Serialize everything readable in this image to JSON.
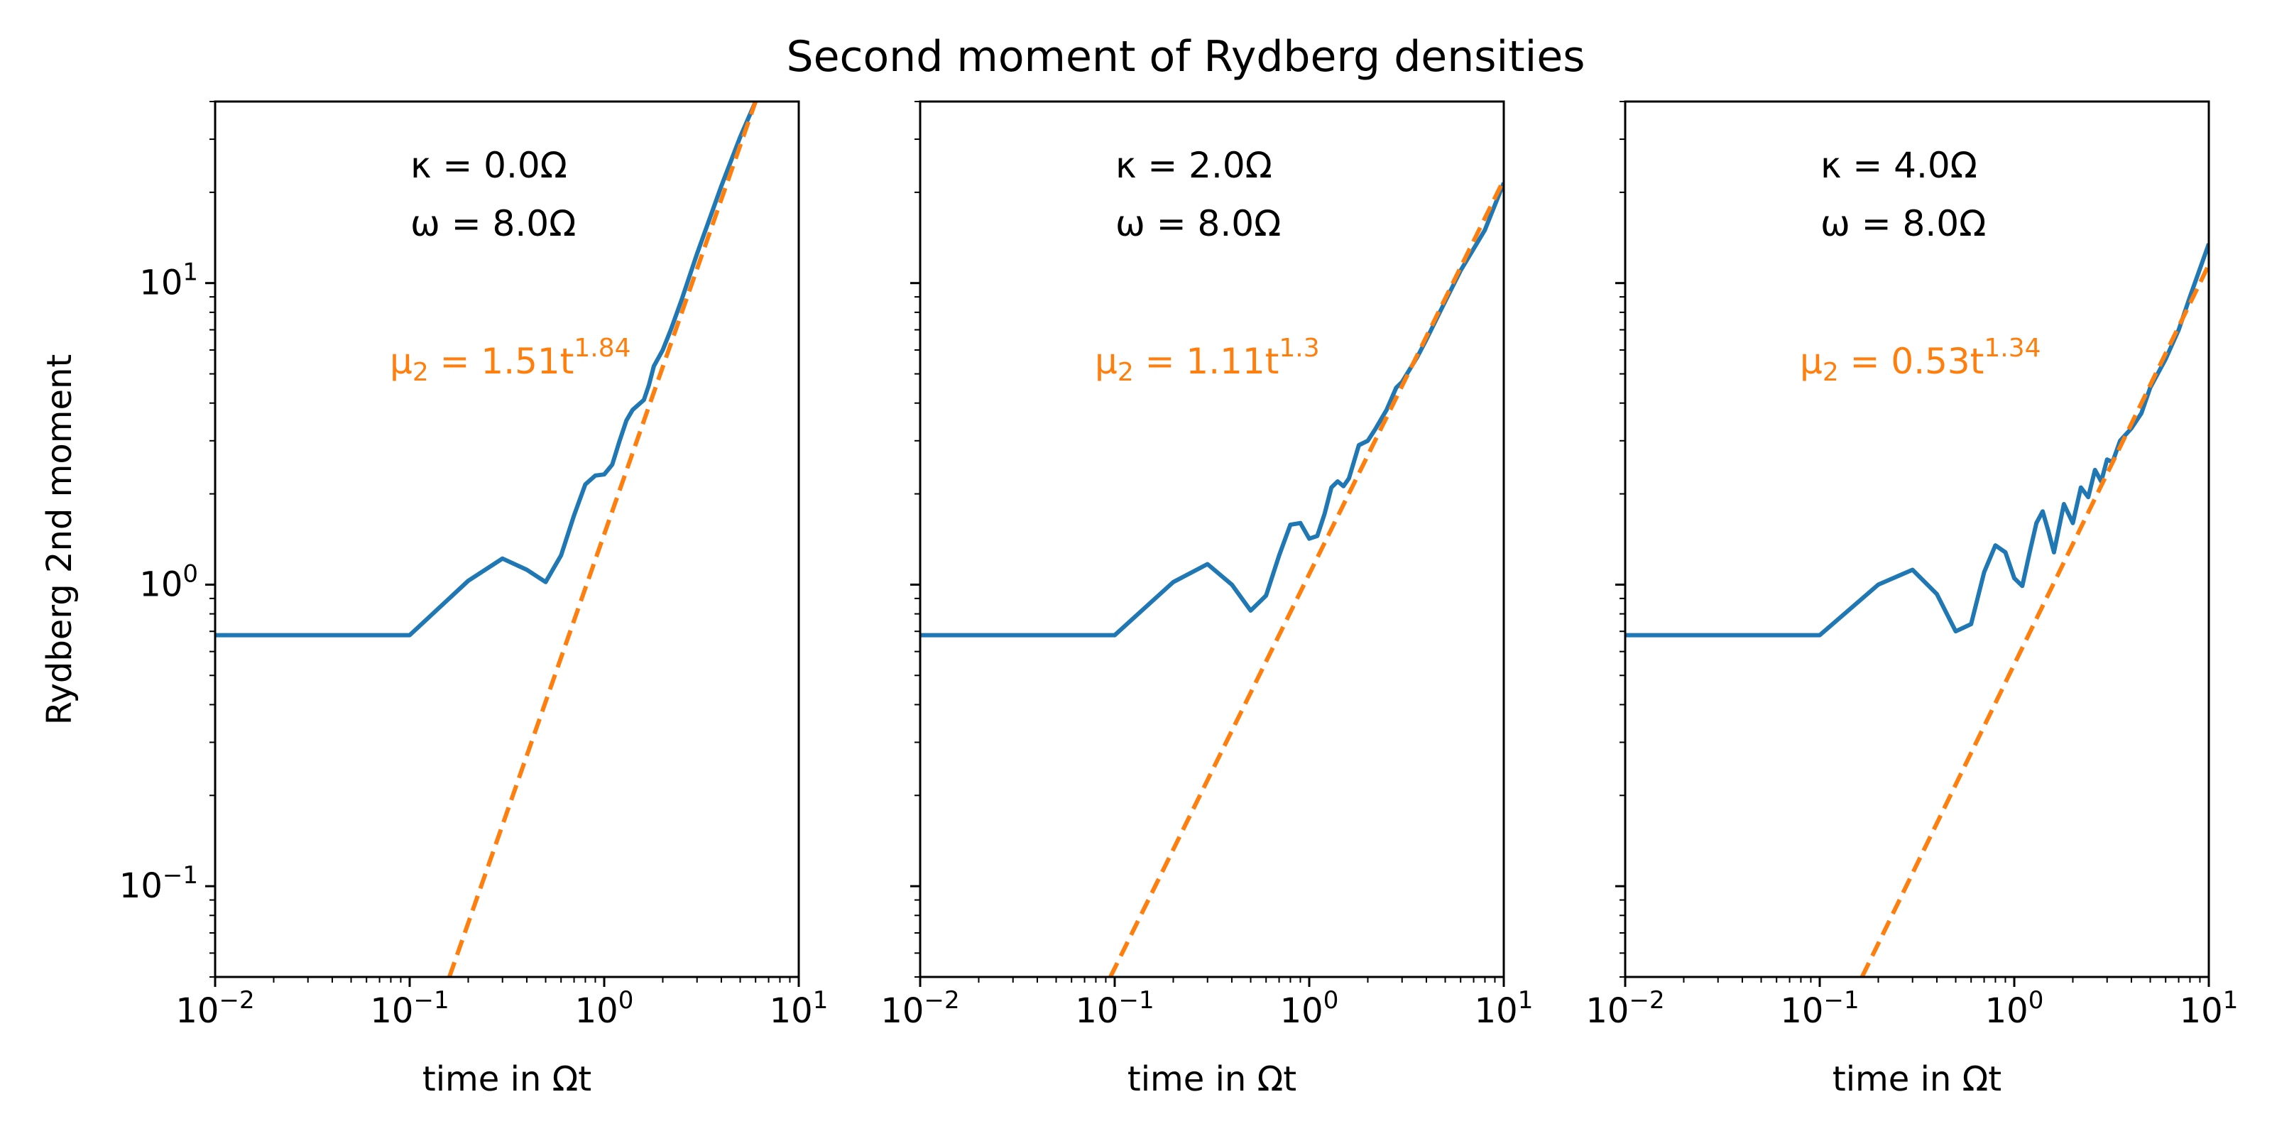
{
  "figure": {
    "suptitle": "Second moment of Rydberg densities",
    "ylabel": "Rydberg 2nd moment",
    "xlabel": "time in Ωt"
  },
  "colors": {
    "data": "#1f77b4",
    "fit": "#ff7f0e",
    "axes": "#000000"
  },
  "chart_data": [
    {
      "type": "line",
      "xscale": "log",
      "yscale": "log",
      "xlim": [
        0.01,
        10
      ],
      "ylim": [
        0.05,
        40
      ],
      "xticks": [
        "10^-2",
        "10^-1",
        "10^0",
        "10^1"
      ],
      "yticks": [
        "10^-1",
        "10^0",
        "10^1"
      ],
      "annotations": {
        "kappa": "κ = 0.0Ω",
        "omega": "ω = 8.0Ω",
        "fit": {
          "prefix": "μ",
          "sub": "2",
          "mid": " = 1.51t",
          "sup": "1.84"
        }
      },
      "series": [
        {
          "x": [
            0.01,
            0.1,
            0.2,
            0.3,
            0.4,
            0.5,
            0.6,
            0.7,
            0.8,
            0.9,
            1.0,
            1.1,
            1.2,
            1.3,
            1.4,
            1.5,
            1.6,
            1.7,
            1.8,
            2.0,
            2.2,
            2.5,
            3.0,
            3.5,
            4.0,
            5.0,
            6.0
          ],
          "y": [
            0.68,
            0.68,
            1.03,
            1.22,
            1.12,
            1.02,
            1.25,
            1.7,
            2.15,
            2.3,
            2.32,
            2.5,
            3.0,
            3.5,
            3.8,
            3.95,
            4.1,
            4.6,
            5.3,
            6.0,
            7.0,
            8.8,
            12.5,
            16.5,
            21.0,
            30.5,
            40.0
          ]
        },
        {
          "fit": {
            "a": 1.51,
            "b": 1.84
          },
          "x": [
            0.16,
            6.0
          ],
          "y": [
            0.05,
            40.0
          ]
        }
      ]
    },
    {
      "type": "line",
      "xscale": "log",
      "yscale": "log",
      "xlim": [
        0.01,
        10
      ],
      "ylim": [
        0.05,
        40
      ],
      "xticks": [
        "10^-2",
        "10^-1",
        "10^0",
        "10^1"
      ],
      "yticks": [],
      "annotations": {
        "kappa": "κ = 2.0Ω",
        "omega": "ω = 8.0Ω",
        "fit": {
          "prefix": "μ",
          "sub": "2",
          "mid": " = 1.11t",
          "sup": "1.3"
        }
      },
      "series": [
        {
          "x": [
            0.01,
            0.1,
            0.2,
            0.3,
            0.4,
            0.5,
            0.6,
            0.7,
            0.8,
            0.9,
            1.0,
            1.1,
            1.2,
            1.3,
            1.4,
            1.5,
            1.6,
            1.8,
            2.0,
            2.2,
            2.5,
            2.8,
            3.0,
            3.3,
            3.6,
            4.0,
            5.0,
            6.0,
            8.0,
            10.0
          ],
          "y": [
            0.68,
            0.68,
            1.02,
            1.17,
            1.0,
            0.82,
            0.92,
            1.25,
            1.58,
            1.6,
            1.42,
            1.45,
            1.72,
            2.1,
            2.2,
            2.12,
            2.25,
            2.9,
            3.0,
            3.3,
            3.8,
            4.5,
            4.7,
            5.2,
            5.7,
            6.5,
            8.7,
            11.0,
            15.0,
            21.5
          ]
        },
        {
          "fit": {
            "a": 1.11,
            "b": 1.3
          },
          "x": [
            0.095,
            10.0
          ],
          "y": [
            0.05,
            22.0
          ]
        }
      ]
    },
    {
      "type": "line",
      "xscale": "log",
      "yscale": "log",
      "xlim": [
        0.01,
        10
      ],
      "ylim": [
        0.05,
        40
      ],
      "xticks": [
        "10^-2",
        "10^-1",
        "10^0",
        "10^1"
      ],
      "yticks": [],
      "annotations": {
        "kappa": "κ = 4.0Ω",
        "omega": "ω = 8.0Ω",
        "fit": {
          "prefix": "μ",
          "sub": "2",
          "mid": " = 0.53t",
          "sup": "1.34"
        }
      },
      "series": [
        {
          "x": [
            0.01,
            0.1,
            0.2,
            0.3,
            0.4,
            0.5,
            0.6,
            0.7,
            0.8,
            0.9,
            1.0,
            1.1,
            1.2,
            1.3,
            1.4,
            1.5,
            1.6,
            1.8,
            2.0,
            2.2,
            2.4,
            2.6,
            2.8,
            3.0,
            3.2,
            3.5,
            4.0,
            4.5,
            5.0,
            6.0,
            7.0,
            8.0,
            10.0
          ],
          "y": [
            0.68,
            0.68,
            1.0,
            1.12,
            0.93,
            0.7,
            0.74,
            1.1,
            1.35,
            1.28,
            1.05,
            0.99,
            1.28,
            1.6,
            1.75,
            1.5,
            1.28,
            1.85,
            1.6,
            2.1,
            1.95,
            2.4,
            2.2,
            2.6,
            2.55,
            3.0,
            3.3,
            3.7,
            4.5,
            5.6,
            7.0,
            9.0,
            13.5
          ]
        },
        {
          "fit": {
            "a": 0.53,
            "b": 1.34
          },
          "x": [
            0.165,
            10.0
          ],
          "y": [
            0.05,
            11.5
          ]
        }
      ]
    }
  ]
}
